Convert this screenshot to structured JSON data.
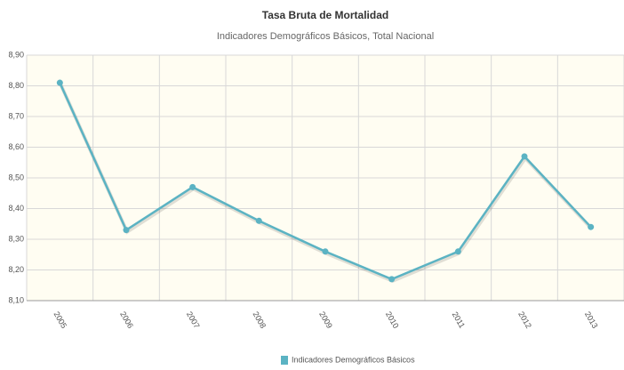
{
  "chart_data": {
    "type": "line",
    "title": "Tasa Bruta de Mortalidad",
    "subtitle": "Indicadores Demográficos Básicos,  Total Nacional",
    "categories": [
      "2005",
      "2006",
      "2007",
      "2008",
      "2009",
      "2010",
      "2011",
      "2012",
      "2013"
    ],
    "series": [
      {
        "name": "Indicadores Demográficos Básicos",
        "color": "#5bb3c3",
        "values": [
          8.81,
          8.33,
          8.47,
          8.36,
          8.26,
          8.17,
          8.26,
          8.57,
          8.34
        ]
      }
    ],
    "ylim": [
      8.1,
      8.9
    ],
    "yticks": [
      {
        "value": 8.1,
        "label": "8,10"
      },
      {
        "value": 8.2,
        "label": "8,20"
      },
      {
        "value": 8.3,
        "label": "8,30"
      },
      {
        "value": 8.4,
        "label": "8,40"
      },
      {
        "value": 8.5,
        "label": "8,50"
      },
      {
        "value": 8.6,
        "label": "8,60"
      },
      {
        "value": 8.7,
        "label": "8,70"
      },
      {
        "value": 8.8,
        "label": "8,80"
      },
      {
        "value": 8.9,
        "label": "8,90"
      }
    ],
    "grid": true,
    "legend": "bottom"
  }
}
